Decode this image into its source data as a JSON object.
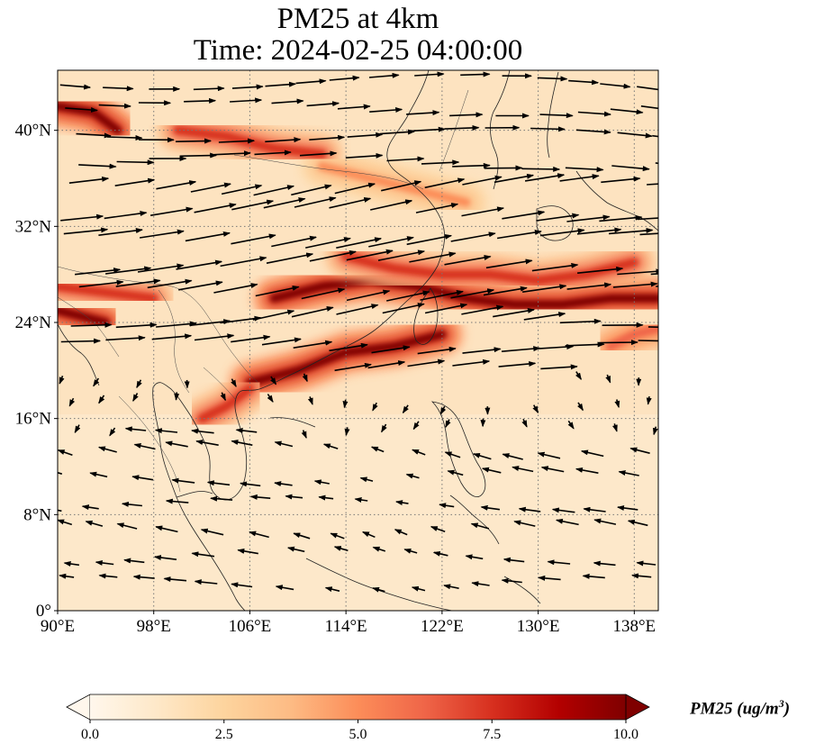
{
  "title": {
    "line1": "PM25 at 4km",
    "line2": "Time: 2024-02-25 04:00:00"
  },
  "colorbar": {
    "label_text": "PM25 (ug/m",
    "label_sup": "3",
    "label_close": ")",
    "ticks": [
      "0.0",
      "2.5",
      "5.0",
      "7.5",
      "10.0"
    ],
    "vmin": 0,
    "vmax": 10,
    "colormap": "OrRd",
    "colors": [
      "#fff7ec",
      "#fee8c8",
      "#fdd49e",
      "#fdbb84",
      "#fc8d59",
      "#ef6548",
      "#d7301f",
      "#b30000",
      "#7f0000"
    ],
    "extend": "both"
  },
  "map": {
    "projection": "PlateCarree",
    "lon_range": [
      90,
      140
    ],
    "lat_range": [
      0,
      45
    ],
    "lon_ticks": [
      {
        "value": 90,
        "label": "90°E"
      },
      {
        "value": 98,
        "label": "98°E"
      },
      {
        "value": 106,
        "label": "106°E"
      },
      {
        "value": 114,
        "label": "114°E"
      },
      {
        "value": 122,
        "label": "122°E"
      },
      {
        "value": 130,
        "label": "130°E"
      },
      {
        "value": 138,
        "label": "138°E"
      }
    ],
    "lat_ticks": [
      {
        "value": 0,
        "label": "0°"
      },
      {
        "value": 8,
        "label": "8°N"
      },
      {
        "value": 16,
        "label": "16°N"
      },
      {
        "value": 24,
        "label": "24°N"
      },
      {
        "value": 32,
        "label": "32°N"
      },
      {
        "value": 40,
        "label": "40°N"
      }
    ],
    "gridlines": true,
    "gridline_style": "dotted",
    "coastlines": true,
    "wind_vectors": true
  },
  "chart_data": {
    "type": "heatmap",
    "variable": "PM25",
    "level": "4km",
    "time": "2024-02-25 04:00:00",
    "units": "ug/m3",
    "plumes": [
      {
        "lon": [
          90,
          93,
          95
        ],
        "lat": [
          42,
          41.5,
          40
        ],
        "level": 9.5
      },
      {
        "lon": [
          100,
          104,
          108,
          112
        ],
        "lat": [
          40,
          39.5,
          38.5,
          38
        ],
        "level": 7
      },
      {
        "lon": [
          112,
          116,
          120,
          124
        ],
        "lat": [
          37,
          36,
          35,
          34
        ],
        "level": 5
      },
      {
        "lon": [
          90,
          94,
          98
        ],
        "lat": [
          27,
          26.5,
          26
        ],
        "level": 7.5
      },
      {
        "lon": [
          90,
          92,
          94
        ],
        "lat": [
          25,
          24.5,
          24
        ],
        "level": 9
      },
      {
        "lon": [
          108,
          112,
          116,
          120,
          124,
          128,
          132,
          136,
          140
        ],
        "lat": [
          26,
          27,
          27.5,
          27,
          26,
          25.5,
          25.5,
          26,
          26
        ],
        "level": 9.5
      },
      {
        "lon": [
          114,
          118,
          122,
          126,
          130,
          134,
          138
        ],
        "lat": [
          29.5,
          28.5,
          28,
          28,
          27.5,
          28,
          29
        ],
        "level": 7
      },
      {
        "lon": [
          106,
          110,
          114,
          118,
          122
        ],
        "lat": [
          19,
          20,
          21.5,
          22,
          23
        ],
        "level": 9
      },
      {
        "lon": [
          102,
          104,
          106
        ],
        "lat": [
          16,
          17,
          18.5
        ],
        "level": 7
      },
      {
        "lon": [
          136,
          138,
          140
        ],
        "lat": [
          22,
          23,
          23.5
        ],
        "level": 6.5
      }
    ],
    "wind_field": "westerly dominant north of 20°N, easterly/northeasterly south of 20°N"
  }
}
